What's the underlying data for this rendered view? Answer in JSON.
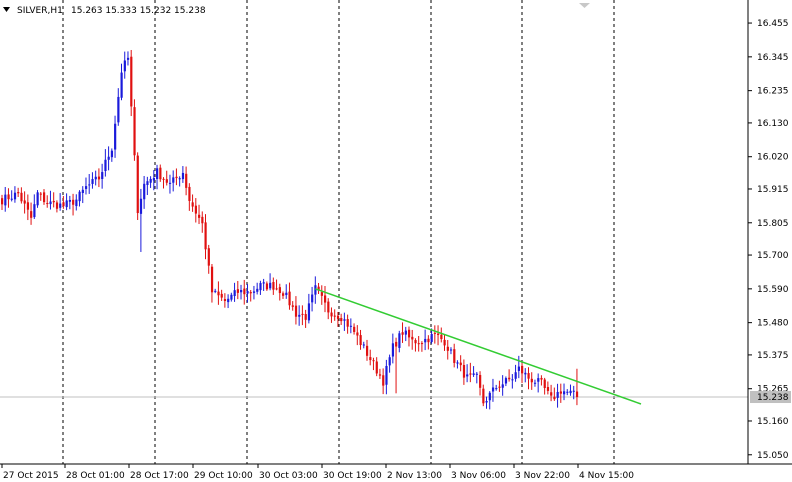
{
  "header": {
    "symbol_timeframe": "SILVER,H1",
    "ohlc": "15.263 15.333 15.232 15.238"
  },
  "colors": {
    "background": "#ffffff",
    "bull_candle": "#1a1adb",
    "bear_candle": "#e01010",
    "grid": "#000000",
    "trendline": "#33cc33",
    "bid_line": "#c0c0c0",
    "price_tag_bg": "#c0c0c0"
  },
  "chart_data": {
    "type": "candlestick",
    "symbol": "SILVER",
    "timeframe": "H1",
    "y_ticks": [
      "16.455",
      "16.345",
      "16.235",
      "16.130",
      "16.020",
      "15.915",
      "15.805",
      "15.700",
      "15.590",
      "15.480",
      "15.375",
      "15.265",
      "15.160",
      "15.050"
    ],
    "ylim": [
      15.02,
      16.53
    ],
    "x_ticks": [
      "27 Oct 2015",
      "28 Oct 01:00",
      "28 Oct 17:00",
      "29 Oct 10:00",
      "30 Oct 03:00",
      "30 Oct 19:00",
      "2 Nov 13:00",
      "3 Nov 06:00",
      "3 Nov 22:00",
      "4 Nov 15:00"
    ],
    "grid": "vertical dashed",
    "current_price": "15.238",
    "trendline": {
      "from": {
        "bar": 97,
        "price": 15.59
      },
      "to": {
        "bar": 192,
        "price": 15.242
      }
    },
    "anchors": [
      [
        0,
        15.88
      ],
      [
        5,
        15.9
      ],
      [
        9,
        15.82
      ],
      [
        11,
        15.9
      ],
      [
        14,
        15.87
      ],
      [
        19,
        15.86
      ],
      [
        23,
        15.88
      ],
      [
        26,
        15.92
      ],
      [
        30,
        15.95
      ],
      [
        34,
        16.05
      ],
      [
        37,
        16.3
      ],
      [
        39,
        16.34
      ],
      [
        42,
        15.85
      ],
      [
        44,
        15.93
      ],
      [
        48,
        15.97
      ],
      [
        52,
        15.93
      ],
      [
        56,
        15.97
      ],
      [
        58,
        15.88
      ],
      [
        62,
        15.8
      ],
      [
        65,
        15.58
      ],
      [
        69,
        15.55
      ],
      [
        73,
        15.58
      ],
      [
        77,
        15.58
      ],
      [
        80,
        15.6
      ],
      [
        84,
        15.6
      ],
      [
        87,
        15.58
      ],
      [
        91,
        15.51
      ],
      [
        94,
        15.5
      ],
      [
        97,
        15.59
      ],
      [
        101,
        15.52
      ],
      [
        105,
        15.5
      ],
      [
        109,
        15.45
      ],
      [
        113,
        15.38
      ],
      [
        118,
        15.29
      ],
      [
        121,
        15.4
      ],
      [
        124,
        15.45
      ],
      [
        127,
        15.42
      ],
      [
        130,
        15.42
      ],
      [
        134,
        15.44
      ],
      [
        137,
        15.42
      ],
      [
        140,
        15.36
      ],
      [
        144,
        15.3
      ],
      [
        147,
        15.3
      ],
      [
        149,
        15.22
      ],
      [
        153,
        15.27
      ],
      [
        158,
        15.3
      ],
      [
        160,
        15.33
      ],
      [
        163,
        15.3
      ],
      [
        167,
        15.28
      ],
      [
        170,
        15.23
      ],
      [
        173,
        15.26
      ],
      [
        176,
        15.25
      ],
      [
        178,
        15.24
      ]
    ]
  }
}
